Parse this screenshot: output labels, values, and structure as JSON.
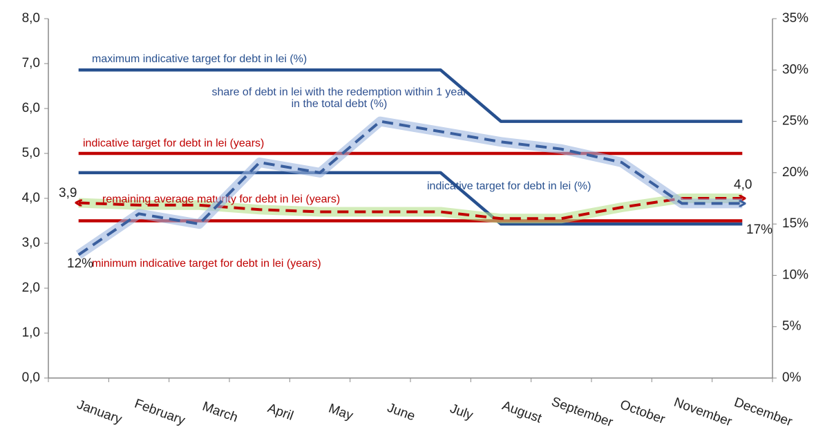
{
  "chart_data": {
    "type": "line",
    "categories": [
      "January",
      "February",
      "March",
      "April",
      "May",
      "June",
      "July",
      "August",
      "September",
      "October",
      "November",
      "December"
    ],
    "series": [
      {
        "name": "maximum  indicative target for debt in lei (%)",
        "color": "#27508f",
        "axis": "y2",
        "style": "solid",
        "values": [
          30,
          30,
          30,
          30,
          30,
          30,
          30,
          25,
          25,
          25,
          25,
          25
        ]
      },
      {
        "name": "indicative target for debt in lei (%)",
        "color": "#27508f",
        "axis": "y2",
        "style": "solid",
        "values": [
          20,
          20,
          20,
          20,
          20,
          20,
          20,
          15,
          15,
          15,
          15,
          15
        ]
      },
      {
        "name": "indicative target for debt in lei (years)",
        "color": "#c00000",
        "axis": "y",
        "style": "solid",
        "values": [
          5,
          5,
          5,
          5,
          5,
          5,
          5,
          5,
          5,
          5,
          5,
          5
        ]
      },
      {
        "name": "minimum indicative target for debt in lei (years)",
        "color": "#c00000",
        "axis": "y",
        "style": "solid",
        "values": [
          3.5,
          3.5,
          3.5,
          3.5,
          3.5,
          3.5,
          3.5,
          3.5,
          3.5,
          3.5,
          3.5,
          3.5
        ]
      },
      {
        "name": "remaining average maturity for debt in lei (years)",
        "color": "#c00000",
        "axis": "y",
        "style": "dashed",
        "glow": "#b5e08a",
        "values": [
          3.9,
          3.85,
          3.85,
          3.75,
          3.7,
          3.7,
          3.7,
          3.55,
          3.55,
          3.8,
          4.0,
          4.0
        ],
        "value_labels": [
          "3,9",
          null,
          null,
          null,
          null,
          null,
          null,
          null,
          null,
          null,
          null,
          "4,0"
        ]
      },
      {
        "name": "share of debt in lei with the redemption within 1 year in the total debt  (%)",
        "color": "#3a5f9e",
        "axis": "y2",
        "style": "dashed",
        "glow": "#9db6e0",
        "values": [
          12,
          16,
          15,
          21,
          20,
          25,
          24,
          23,
          22.3,
          21,
          17,
          17
        ],
        "value_labels": [
          "12%",
          null,
          null,
          null,
          null,
          null,
          null,
          null,
          null,
          null,
          null,
          "17%"
        ]
      }
    ],
    "ylim": [
      0,
      8
    ],
    "yticks": [
      {
        "value": 0,
        "label": "0,0"
      },
      {
        "value": 1,
        "label": "1,0"
      },
      {
        "value": 2,
        "label": "2,0"
      },
      {
        "value": 3,
        "label": "3,0"
      },
      {
        "value": 4,
        "label": "4,0"
      },
      {
        "value": 5,
        "label": "5,0"
      },
      {
        "value": 6,
        "label": "6,0"
      },
      {
        "value": 7,
        "label": "7,0"
      },
      {
        "value": 8,
        "label": "8,0"
      }
    ],
    "y2lim": [
      0,
      35
    ],
    "y2ticks": [
      {
        "value": 0,
        "label": "0%"
      },
      {
        "value": 5,
        "label": "5%"
      },
      {
        "value": 10,
        "label": "10%"
      },
      {
        "value": 15,
        "label": "15%"
      },
      {
        "value": 20,
        "label": "20%"
      },
      {
        "value": 25,
        "label": "25%"
      },
      {
        "value": 30,
        "label": "30%"
      },
      {
        "value": 35,
        "label": "35%"
      }
    ],
    "grid": false
  }
}
